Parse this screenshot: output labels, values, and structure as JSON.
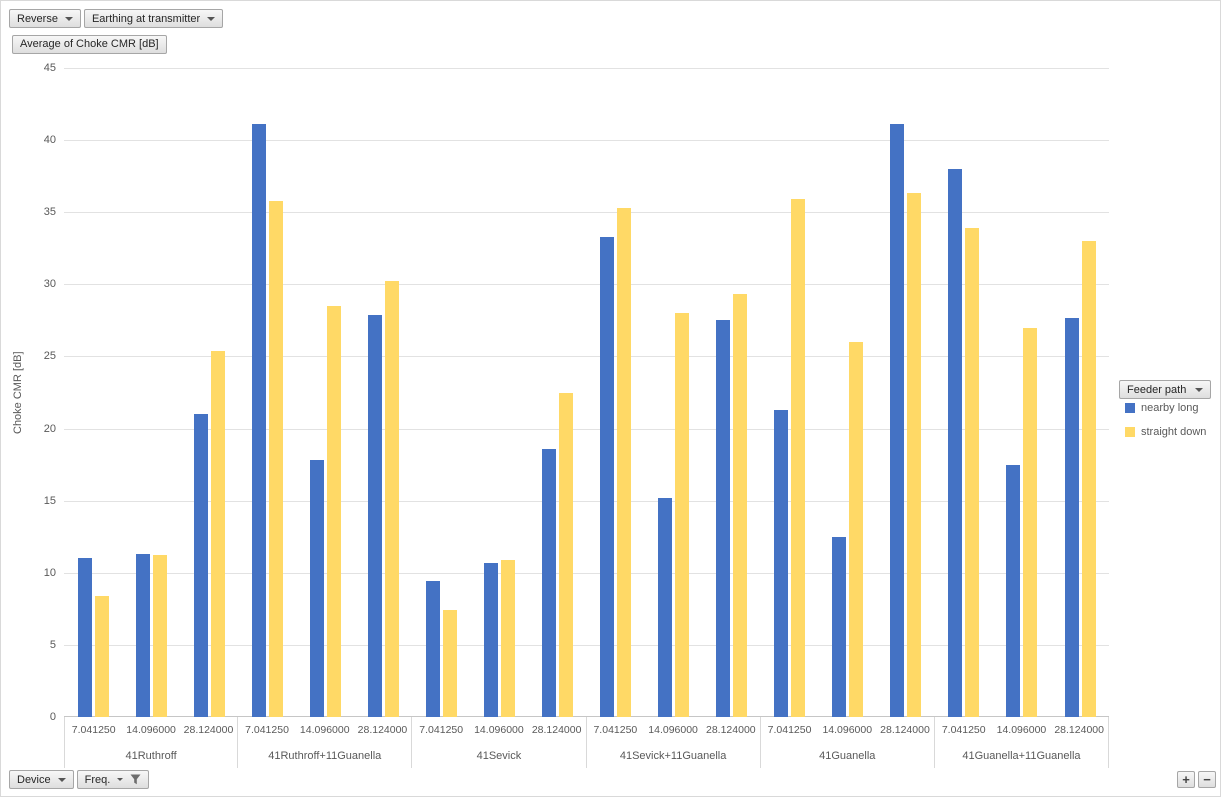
{
  "field_buttons": {
    "reverse": "Reverse",
    "earthing": "Earthing at transmitter",
    "value": "Average of Choke CMR [dB]",
    "legend": "Feeder path",
    "device": "Device",
    "freq": "Freq.",
    "expand": "+",
    "collapse": "−"
  },
  "chart_data": {
    "type": "bar",
    "title": "Average of Choke CMR [dB]",
    "ylabel": "Choke CMR [dB]",
    "ylim": [
      0,
      45
    ],
    "yticks": [
      0,
      5,
      10,
      15,
      20,
      25,
      30,
      35,
      40,
      45
    ],
    "grid": true,
    "legend_title": "Feeder path",
    "legend_position": "right",
    "groups": [
      {
        "device": "41Ruthroff",
        "frequencies": [
          "7.041250",
          "14.096000",
          "28.124000"
        ]
      },
      {
        "device": "41Ruthroff+11Guanella",
        "frequencies": [
          "7.041250",
          "14.096000",
          "28.124000"
        ]
      },
      {
        "device": "41Sevick",
        "frequencies": [
          "7.041250",
          "14.096000",
          "28.124000"
        ]
      },
      {
        "device": "41Sevick+11Guanella",
        "frequencies": [
          "7.041250",
          "14.096000",
          "28.124000"
        ]
      },
      {
        "device": "41Guanella",
        "frequencies": [
          "7.041250",
          "14.096000",
          "28.124000"
        ]
      },
      {
        "device": "41Guanella+11Guanella",
        "frequencies": [
          "7.041250",
          "14.096000",
          "28.124000"
        ]
      }
    ],
    "series": [
      {
        "name": "nearby long",
        "color": "#4472C4",
        "values": [
          [
            11.0,
            11.3,
            21.0
          ],
          [
            41.1,
            17.8,
            27.9
          ],
          [
            9.4,
            10.7,
            18.6
          ],
          [
            33.3,
            15.2,
            27.5
          ],
          [
            21.3,
            12.5,
            41.1
          ],
          [
            38.0,
            17.5,
            27.7
          ]
        ]
      },
      {
        "name": "straight down",
        "color": "#FFD966",
        "values": [
          [
            8.4,
            11.2,
            25.4
          ],
          [
            35.8,
            28.5,
            30.2
          ],
          [
            7.4,
            10.9,
            22.5
          ],
          [
            35.3,
            28.0,
            29.3
          ],
          [
            35.9,
            26.0,
            36.3
          ],
          [
            33.9,
            27.0,
            33.0
          ]
        ]
      }
    ]
  }
}
